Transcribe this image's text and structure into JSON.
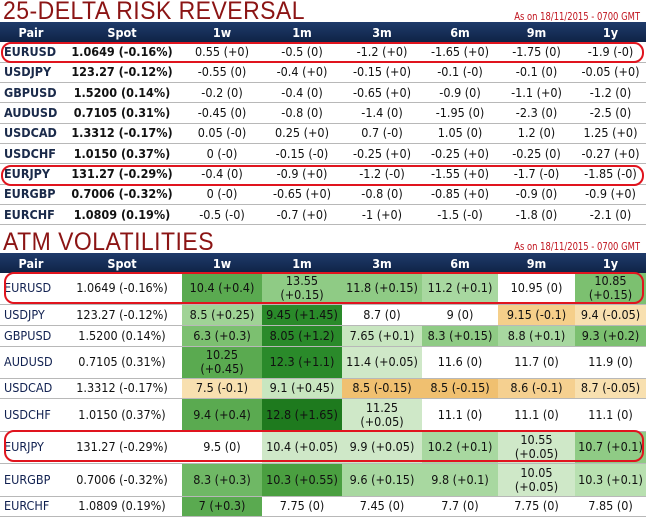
{
  "risk_reversal": {
    "title": "25-DELTA RISK REVERSAL",
    "as_of": "As on 18/11/2015 - 0700 GMT",
    "headers": [
      "Pair",
      "Spot",
      "1w",
      "1m",
      "3m",
      "6m",
      "9m",
      "1y"
    ],
    "rows": [
      [
        "EURUSD",
        "1.0649 (-0.16%)",
        "0.55 (+0)",
        "-0.5 (0)",
        "-1.2 (+0)",
        "-1.65 (+0)",
        "-1.75 (0)",
        "-1.9 (-0)"
      ],
      [
        "USDJPY",
        "123.27 (-0.12%)",
        "-0.55 (0)",
        "-0.4 (+0)",
        "-0.15 (+0)",
        "-0.1 (-0)",
        "-0.1 (0)",
        "-0.05 (+0)"
      ],
      [
        "GBPUSD",
        "1.5200 (0.14%)",
        "-0.2 (0)",
        "-0.4 (0)",
        "-0.65 (+0)",
        "-0.9 (0)",
        "-1.1 (+0)",
        "-1.2 (0)"
      ],
      [
        "AUDUSD",
        "0.7105 (0.31%)",
        "-0.45 (0)",
        "-0.8 (0)",
        "-1.4 (0)",
        "-1.95 (0)",
        "-2.3 (0)",
        "-2.5 (0)"
      ],
      [
        "USDCAD",
        "1.3312 (-0.17%)",
        "0.05 (-0)",
        "0.25 (+0)",
        "0.7 (-0)",
        "1.05 (0)",
        "1.2 (0)",
        "1.25 (+0)"
      ],
      [
        "USDCHF",
        "1.0150 (0.37%)",
        "0 (-0)",
        "-0.15 (-0)",
        "-0.25 (+0)",
        "-0.25 (+0)",
        "-0.25 (0)",
        "-0.27 (+0)"
      ],
      [
        "EURJPY",
        "131.27 (-0.29%)",
        "-0.4 (0)",
        "-0.9 (+0)",
        "-1.2 (-0)",
        "-1.55 (+0)",
        "-1.7 (-0)",
        "-1.85 (-0)"
      ],
      [
        "EURGBP",
        "0.7006 (-0.32%)",
        "0 (-0)",
        "-0.65 (+0)",
        "-0.8 (0)",
        "-0.85 (+0)",
        "-0.9 (0)",
        "-0.9 (+0)"
      ],
      [
        "EURCHF",
        "1.0809 (0.19%)",
        "-0.5 (-0)",
        "-0.7 (+0)",
        "-1 (+0)",
        "-1.5 (-0)",
        "-1.8 (0)",
        "-2.1 (0)"
      ]
    ]
  },
  "atm_volatilities": {
    "title": "ATM VOLATILITIES",
    "as_of": "As on 18/11/2015 - 0700 GMT",
    "headers": [
      "Pair",
      "Spot",
      "1w",
      "1m",
      "3m",
      "6m",
      "9m",
      "1y"
    ],
    "rows": [
      [
        "EURUSD",
        "1.0649 (-0.16%)",
        "10.4 (+0.4)",
        "13.55 (+0.15)",
        "11.8 (+0.15)",
        "11.2 (+0.1)",
        "10.95 (0)",
        "10.85 (+0.15)"
      ],
      [
        "USDJPY",
        "123.27 (-0.12%)",
        "8.5 (+0.25)",
        "9.45 (+1.45)",
        "8.7 (0)",
        "9 (0)",
        "9.15 (-0.1)",
        "9.4 (-0.05)"
      ],
      [
        "GBPUSD",
        "1.5200 (0.14%)",
        "6.3 (+0.3)",
        "8.05 (+1.2)",
        "7.65 (+0.1)",
        "8.3 (+0.15)",
        "8.8 (+0.1)",
        "9.3 (+0.2)"
      ],
      [
        "AUDUSD",
        "0.7105 (0.31%)",
        "10.25 (+0.45)",
        "12.3 (+1.1)",
        "11.4 (+0.05)",
        "11.6 (0)",
        "11.7 (0)",
        "11.9 (0)"
      ],
      [
        "USDCAD",
        "1.3312 (-0.17%)",
        "7.5 (-0.1)",
        "9.1 (+0.45)",
        "8.5 (-0.15)",
        "8.5 (-0.15)",
        "8.6 (-0.1)",
        "8.7 (-0.05)"
      ],
      [
        "USDCHF",
        "1.0150 (0.37%)",
        "9.4 (+0.4)",
        "12.8 (+1.65)",
        "11.25 (+0.05)",
        "11.1 (0)",
        "11.1 (0)",
        "11.1 (0)"
      ],
      [
        "EURJPY",
        "131.27 (-0.29%)",
        "9.5 (0)",
        "10.4 (+0.05)",
        "9.9 (+0.05)",
        "10.2 (+0.1)",
        "10.55 (+0.05)",
        "10.7 (+0.1)"
      ],
      [
        "EURGBP",
        "0.7006 (-0.32%)",
        "8.3 (+0.3)",
        "10.3 (+0.55)",
        "9.6 (+0.15)",
        "9.8 (+0.1)",
        "10.05 (+0.05)",
        "10.3 (+0.1)"
      ],
      [
        "EURCHF",
        "1.0809 (0.19%)",
        "7 (+0.3)",
        "7.75 (0)",
        "7.45 (0)",
        "7.7 (0)",
        "7.75 (0)",
        "7.85 (0)"
      ]
    ],
    "cell_colors": [
      [
        "#5aaa50",
        "#8fcb85",
        "#8fcb85",
        "#a8d8a0",
        "#ffffff",
        "#7cc070"
      ],
      [
        "#a0d396",
        "#2a8a2a",
        "#ffffff",
        "#ffffff",
        "#f5cf8a",
        "#f8e0b0"
      ],
      [
        "#7cc070",
        "#2a8a2a",
        "#c8e6c0",
        "#8fcb85",
        "#a8d8a0",
        "#7cc070"
      ],
      [
        "#5aaa50",
        "#2a8a2a",
        "#cfe8c8",
        "#ffffff",
        "#ffffff",
        "#ffffff"
      ],
      [
        "#f8e0b0",
        "#c8e6c0",
        "#f0c070",
        "#f0c070",
        "#f5d090",
        "#f8e0b0"
      ],
      [
        "#5aaa50",
        "#1e7a1e",
        "#cfe8c8",
        "#ffffff",
        "#ffffff",
        "#ffffff"
      ],
      [
        "#ffffff",
        "#cfe8c8",
        "#cfe8c8",
        "#a8d8a0",
        "#cfe8c8",
        "#8fcb85"
      ],
      [
        "#6fb865",
        "#4a9f40",
        "#a8d8a0",
        "#a8d8a0",
        "#cfe8c8",
        "#b8e0b0"
      ],
      [
        "#5aaa50",
        "#ffffff",
        "#ffffff",
        "#ffffff",
        "#ffffff",
        "#ffffff"
      ]
    ]
  },
  "highlight_color": "#e0141e"
}
